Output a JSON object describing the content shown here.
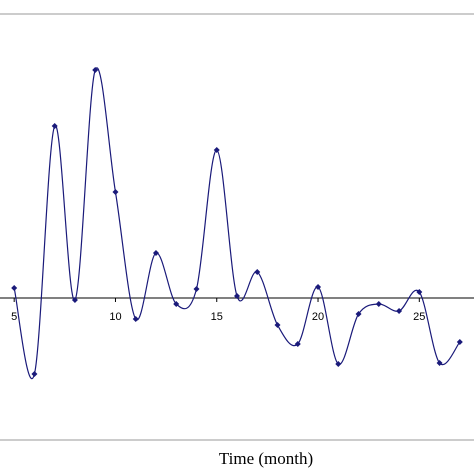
{
  "chart_data": {
    "type": "line",
    "x_label": "Time (month)",
    "x": [
      5,
      6,
      7,
      8,
      9,
      10,
      11,
      12,
      13,
      14,
      15,
      16,
      17,
      18,
      19,
      20,
      21,
      22,
      23,
      24,
      25,
      26,
      27
    ],
    "series": [
      {
        "color": "#1a1a7a",
        "values": [
          1.0,
          -7.6,
          17.2,
          -0.2,
          22.8,
          10.6,
          -2.1,
          4.5,
          -0.6,
          0.9,
          14.8,
          0.2,
          2.6,
          -2.7,
          -4.6,
          1.1,
          -6.6,
          -1.6,
          -0.6,
          -1.3,
          0.6,
          -6.5,
          -4.4
        ]
      }
    ],
    "xlim": [
      4.3,
      27.7
    ],
    "xticks": [
      5,
      10,
      15,
      20,
      25
    ],
    "ylim": [
      -14.2,
      28.4
    ]
  }
}
